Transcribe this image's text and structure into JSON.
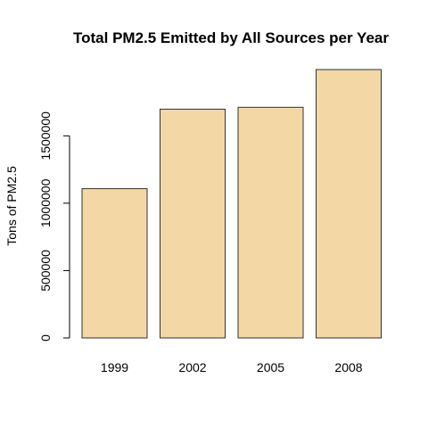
{
  "chart_data": {
    "type": "bar",
    "title": "Total PM2.5 Emitted by All Sources per Year",
    "xlabel": "",
    "ylabel": "Tons of PM2.5",
    "categories": [
      "1999",
      "2002",
      "2005",
      "2008"
    ],
    "values": [
      1108000,
      1698000,
      1712000,
      1992000
    ],
    "ylim": [
      0,
      1992000
    ],
    "yticks": [
      0,
      500000,
      1000000,
      1500000
    ],
    "ytick_labels": [
      "0",
      "500000",
      "1000000",
      "1500000"
    ],
    "grid": false,
    "bar_color": "#F3D7A5",
    "bar_border_color": "#333333"
  }
}
